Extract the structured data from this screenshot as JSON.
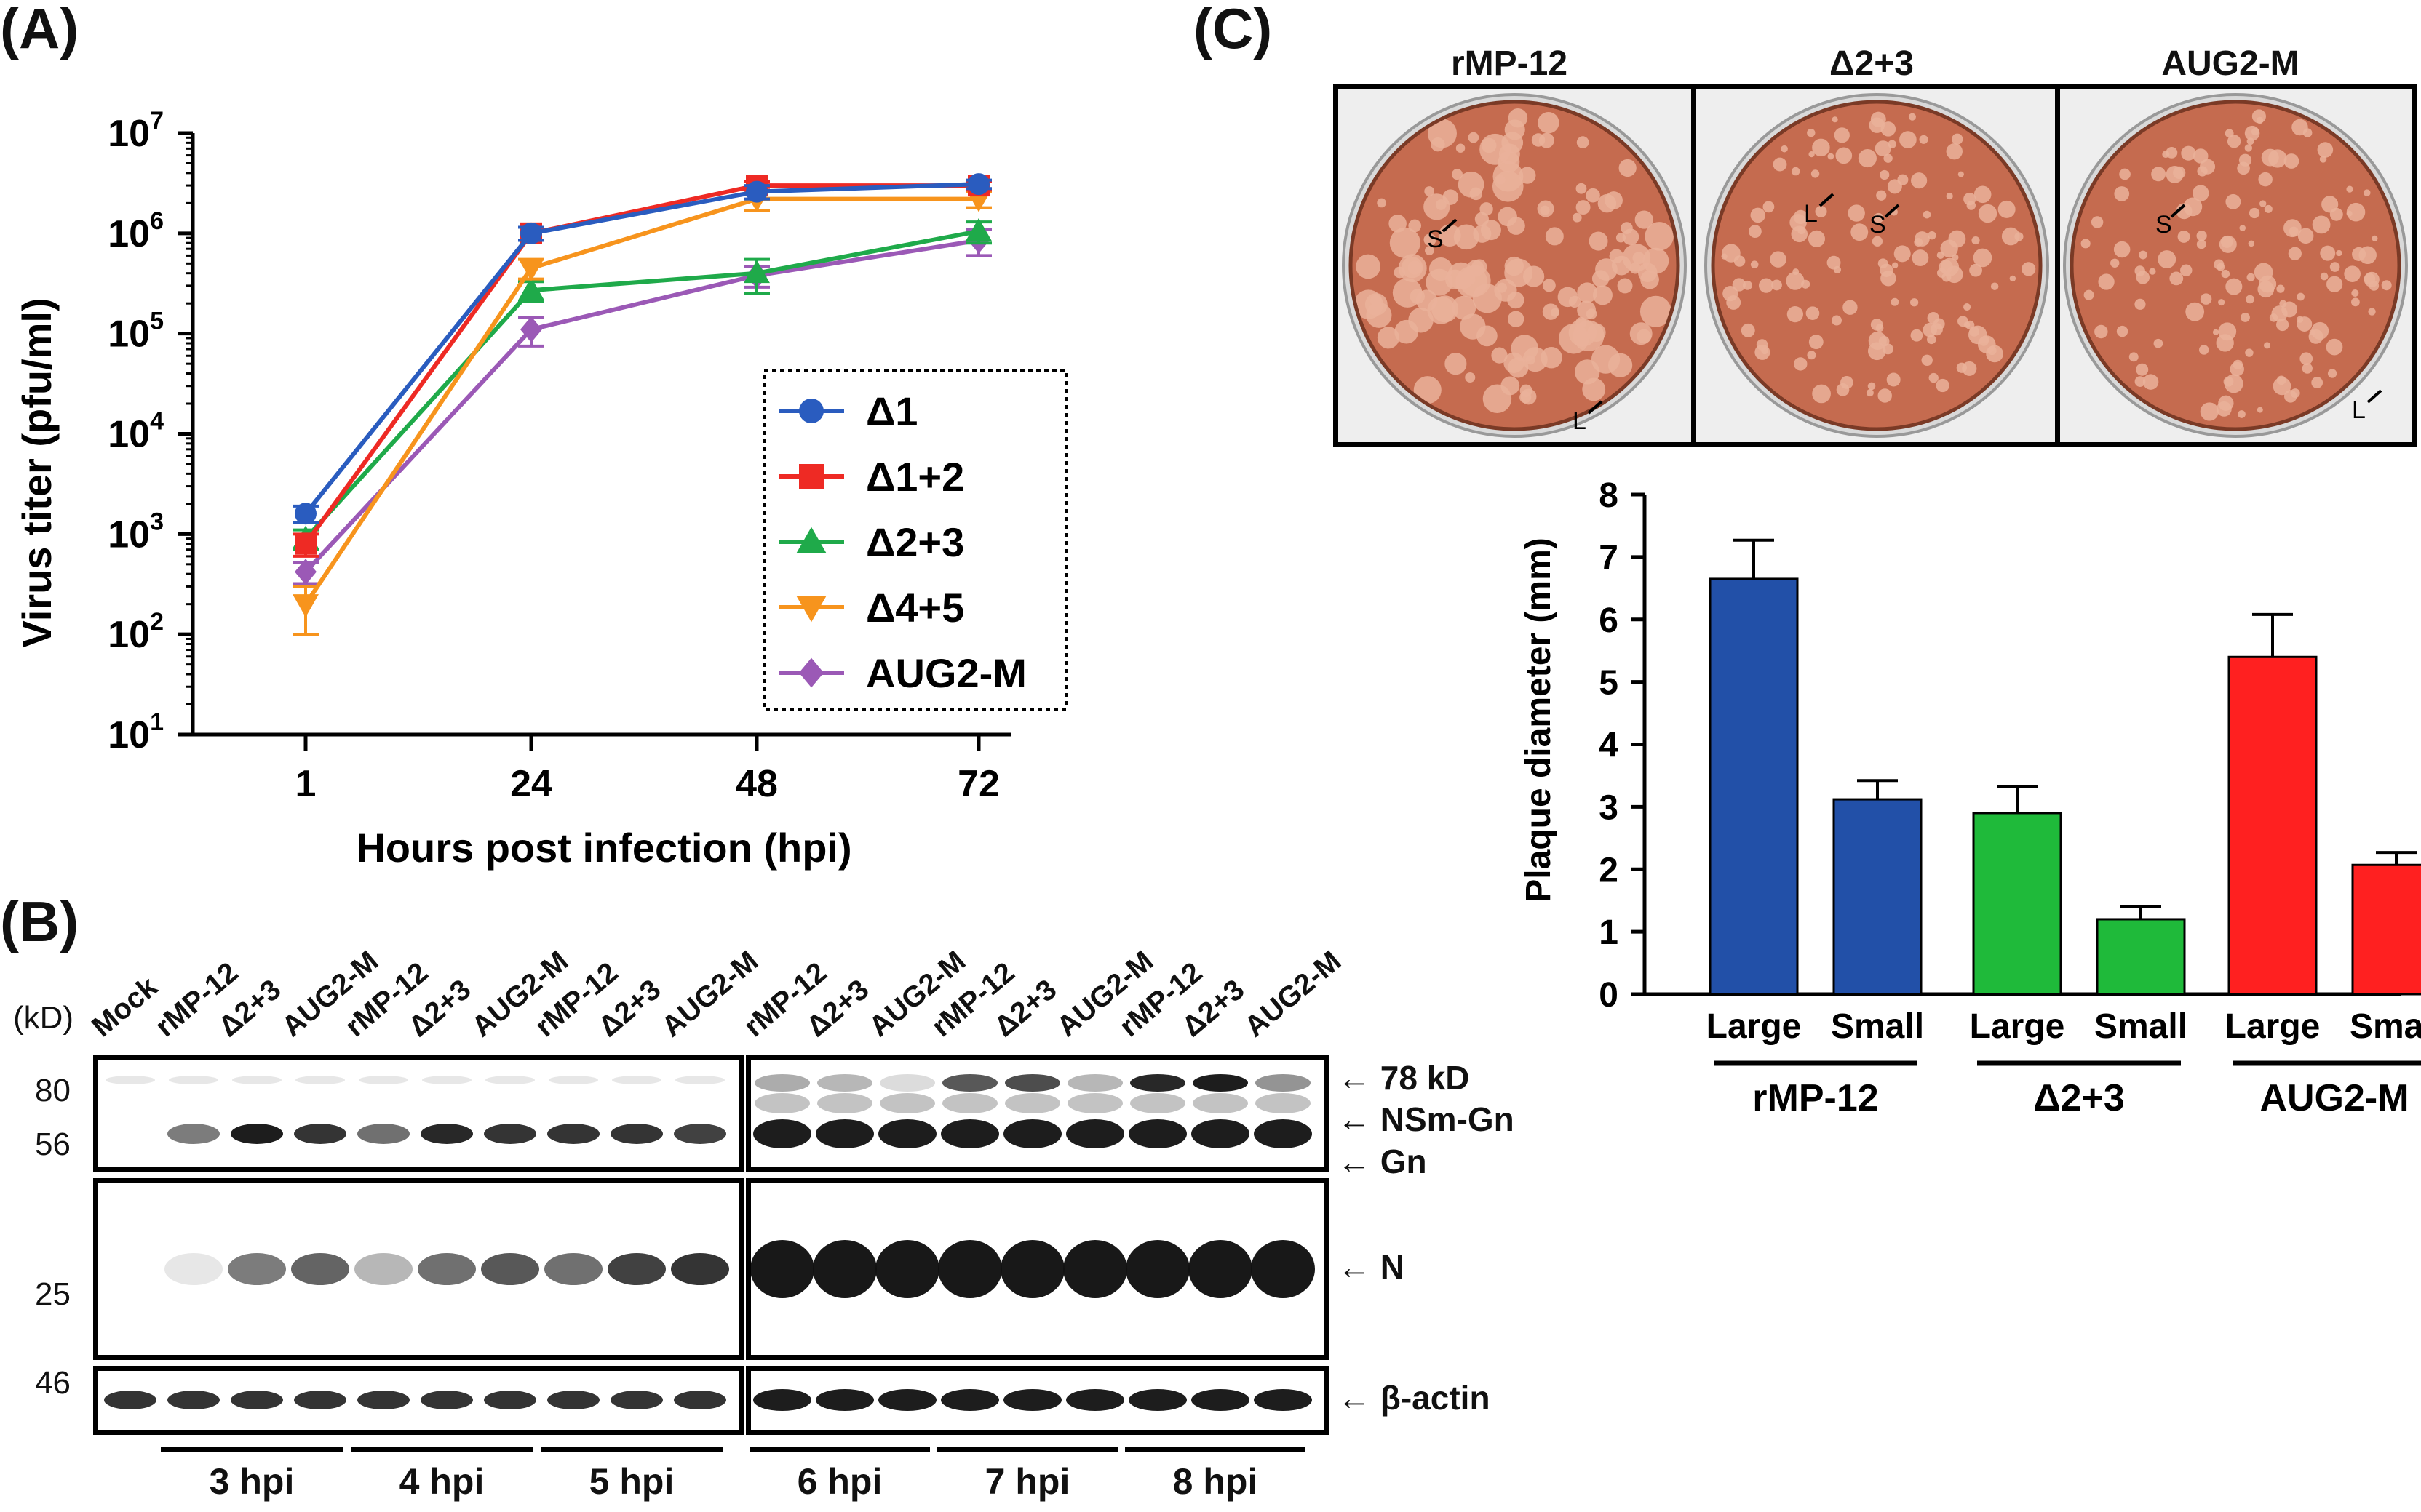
{
  "panels": {
    "a": "(A)",
    "b": "(B)",
    "c": "(C)"
  },
  "chart_data": [
    {
      "type": "line",
      "panel": "A",
      "xlabel": "Hours post infection (hpi)",
      "ylabel": "Virus titer (pfu/ml)",
      "x": [
        1,
        24,
        48,
        72
      ],
      "x_tick_labels": [
        "1",
        "24",
        "48",
        "72"
      ],
      "y_scale": "log",
      "ylim": [
        10,
        10000000
      ],
      "y_tick_labels": [
        {
          "base": "10",
          "exp": "1",
          "value": 10
        },
        {
          "base": "10",
          "exp": "2",
          "value": 100
        },
        {
          "base": "10",
          "exp": "3",
          "value": 1000
        },
        {
          "base": "10",
          "exp": "4",
          "value": 10000
        },
        {
          "base": "10",
          "exp": "5",
          "value": 100000
        },
        {
          "base": "10",
          "exp": "6",
          "value": 1000000
        },
        {
          "base": "10",
          "exp": "7",
          "value": 10000000
        }
      ],
      "legend_position": "bottom-right",
      "series": [
        {
          "name": "Δ1",
          "color": "#2a5cbf",
          "marker": "circle",
          "values": [
            1600,
            1000000,
            2600000,
            3100000
          ],
          "err": [
            300,
            150000,
            400000,
            300000
          ]
        },
        {
          "name": "Δ1+2",
          "color": "#ee2a24",
          "marker": "square",
          "values": [
            800,
            1000000,
            3000000,
            3000000
          ],
          "err": [
            200,
            150000,
            300000,
            300000
          ]
        },
        {
          "name": "Δ2+3",
          "color": "#1faa4a",
          "marker": "triangle-up",
          "values": [
            900,
            270000,
            400000,
            1050000
          ],
          "err": [
            200,
            60000,
            150000,
            250000
          ]
        },
        {
          "name": "Δ4+5",
          "color": "#f7941d",
          "marker": "triangle-down",
          "values": [
            200,
            450000,
            2200000,
            2200000
          ],
          "err": [
            100,
            100000,
            500000,
            400000
          ]
        },
        {
          "name": "AUG2-M",
          "color": "#9b59b6",
          "marker": "diamond",
          "values": [
            420,
            110000,
            380000,
            850000
          ],
          "err": [
            100,
            35000,
            90000,
            250000
          ]
        }
      ]
    },
    {
      "type": "bar",
      "panel": "C",
      "ylabel": "Plaque diameter (mm)",
      "ylim": [
        0,
        8
      ],
      "y_ticks": [
        "0",
        "1",
        "2",
        "3",
        "4",
        "5",
        "6",
        "7",
        "8"
      ],
      "categories": [
        "Large",
        "Small",
        "Large",
        "Small",
        "Large",
        "Small"
      ],
      "groups": [
        "rMP-12",
        "Δ2+3",
        "AUG2-M"
      ],
      "values": [
        6.65,
        3.12,
        2.9,
        1.2,
        5.4,
        2.07
      ],
      "err": [
        0.62,
        0.3,
        0.43,
        0.2,
        0.68,
        0.2
      ],
      "colors": [
        "#2250a8",
        "#2250a8",
        "#1fba3a",
        "#1fba3a",
        "#ff2020",
        "#ff2020"
      ]
    }
  ],
  "blot": {
    "lanes_left": [
      "Mock",
      "rMP-12",
      "Δ2+3",
      "AUG2-M",
      "rMP-12",
      "Δ2+3",
      "AUG2-M",
      "rMP-12",
      "Δ2+3",
      "AUG2-M"
    ],
    "lanes_right": [
      "rMP-12",
      "Δ2+3",
      "AUG2-M",
      "rMP-12",
      "Δ2+3",
      "AUG2-M",
      "rMP-12",
      "Δ2+3",
      "AUG2-M"
    ],
    "kd_label": "(kD)",
    "markers": [
      "80",
      "56",
      "25",
      "46"
    ],
    "band_labels": [
      "78 kD",
      "NSm-Gn",
      "Gn",
      "N",
      "β-actin"
    ],
    "timepoints": [
      "3 hpi",
      "4 hpi",
      "5 hpi",
      "6 hpi",
      "7 hpi",
      "8 hpi"
    ]
  },
  "plates": [
    {
      "title": "rMP-12",
      "labels": [
        "S",
        "L"
      ]
    },
    {
      "title": "Δ2+3",
      "labels": [
        "L",
        "S"
      ]
    },
    {
      "title": "AUG2-M",
      "labels": [
        "S",
        "L"
      ]
    }
  ]
}
